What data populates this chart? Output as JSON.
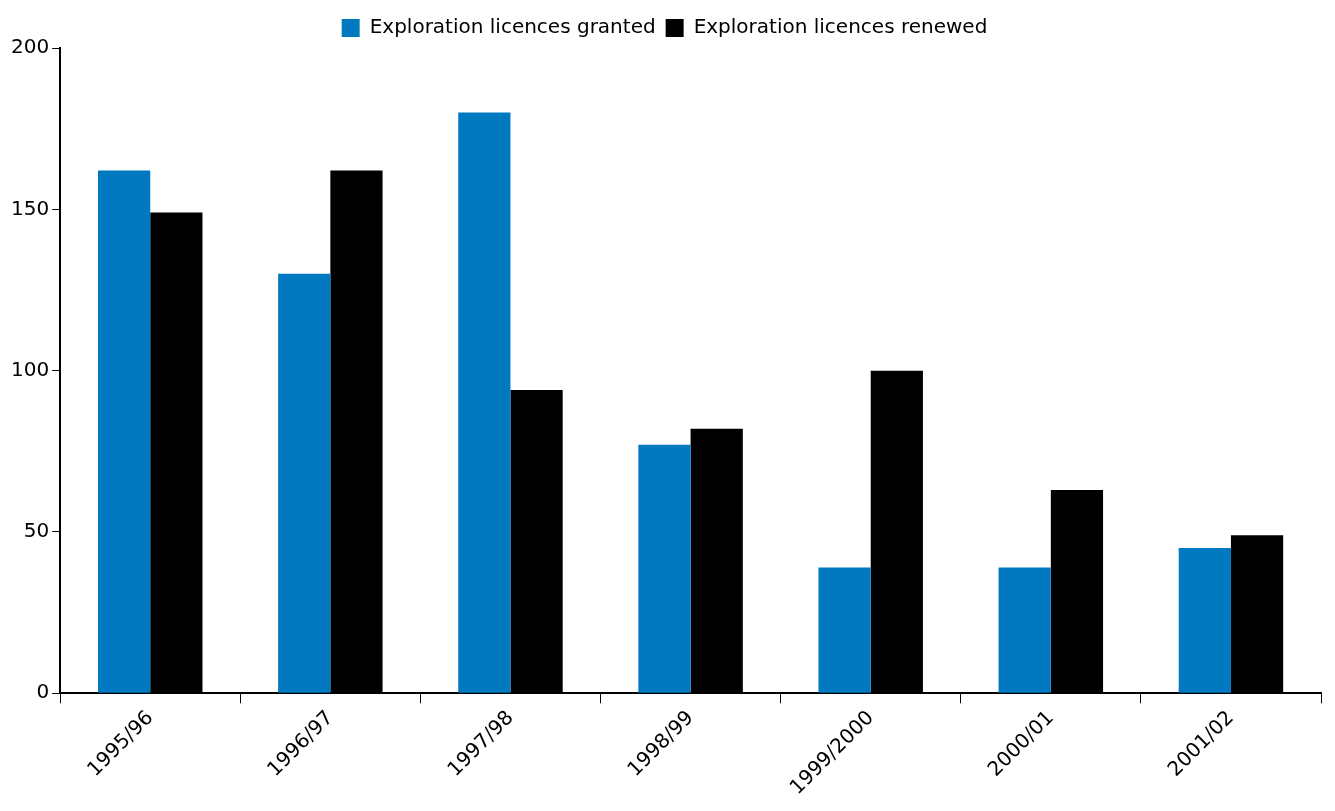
{
  "chart_data": {
    "type": "bar",
    "categories": [
      "1995/96",
      "1996/97",
      "1997/98",
      "1998/99",
      "1999/2000",
      "2000/01",
      "2001/02"
    ],
    "series": [
      {
        "name": "Exploration licences granted",
        "color": "#0079c1",
        "values": [
          162,
          130,
          180,
          77,
          39,
          39,
          45
        ]
      },
      {
        "name": "Exploration licences renewed",
        "color": "#000000",
        "values": [
          149,
          162,
          94,
          82,
          100,
          63,
          49
        ]
      }
    ],
    "ylim": [
      0,
      200
    ],
    "yticks": [
      0,
      50,
      100,
      150,
      200
    ],
    "grid": false,
    "legend": "top"
  }
}
